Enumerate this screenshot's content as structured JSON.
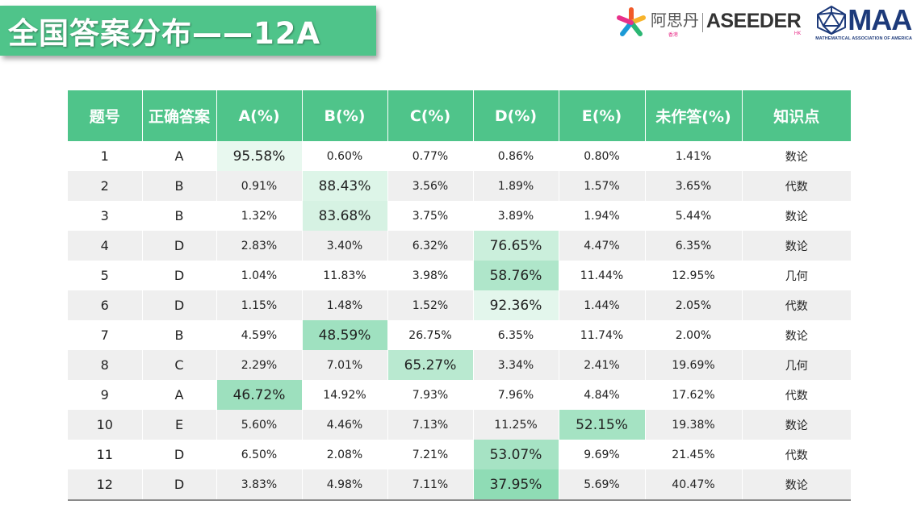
{
  "title": "全国答案分布——12A",
  "logos": {
    "aseeder_cn": "阿思丹",
    "aseeder_sub": "香港",
    "aseeder_en": "ASEEDER",
    "aseeder_hk": "HK",
    "maa": "MAA",
    "maa_sub": "MATHEMATICAL ASSOCIATION OF AMERICA"
  },
  "colors": {
    "accent": "#4fc48a",
    "hl_low": "#e8f8ef",
    "hl_high": "#8fdcb5"
  },
  "headers": [
    "题号",
    "正确答案",
    "A(%)",
    "B(%)",
    "C(%)",
    "D(%)",
    "E(%)",
    "未作答(%)",
    "知识点"
  ],
  "rows": [
    {
      "num": "1",
      "answer": "A",
      "pcts": [
        "95.58%",
        "0.60%",
        "0.77%",
        "0.86%",
        "0.80%"
      ],
      "blank": "1.41%",
      "topic": "数论",
      "hl": 0
    },
    {
      "num": "2",
      "answer": "B",
      "pcts": [
        "0.91%",
        "88.43%",
        "3.56%",
        "1.89%",
        "1.57%"
      ],
      "blank": "3.65%",
      "topic": "代数",
      "hl": 1
    },
    {
      "num": "3",
      "answer": "B",
      "pcts": [
        "1.32%",
        "83.68%",
        "3.75%",
        "3.89%",
        "1.94%"
      ],
      "blank": "5.44%",
      "topic": "数论",
      "hl": 1
    },
    {
      "num": "4",
      "answer": "D",
      "pcts": [
        "2.83%",
        "3.40%",
        "6.32%",
        "76.65%",
        "4.47%"
      ],
      "blank": "6.35%",
      "topic": "数论",
      "hl": 3
    },
    {
      "num": "5",
      "answer": "D",
      "pcts": [
        "1.04%",
        "11.83%",
        "3.98%",
        "58.76%",
        "11.44%"
      ],
      "blank": "12.95%",
      "topic": "几何",
      "hl": 3
    },
    {
      "num": "6",
      "answer": "D",
      "pcts": [
        "1.15%",
        "1.48%",
        "1.52%",
        "92.36%",
        "1.44%"
      ],
      "blank": "2.05%",
      "topic": "代数",
      "hl": 3
    },
    {
      "num": "7",
      "answer": "B",
      "pcts": [
        "4.59%",
        "48.59%",
        "26.75%",
        "6.35%",
        "11.74%"
      ],
      "blank": "2.00%",
      "topic": "数论",
      "hl": 1
    },
    {
      "num": "8",
      "answer": "C",
      "pcts": [
        "2.29%",
        "7.01%",
        "65.27%",
        "3.34%",
        "2.41%"
      ],
      "blank": "19.69%",
      "topic": "几何",
      "hl": 2
    },
    {
      "num": "9",
      "answer": "A",
      "pcts": [
        "46.72%",
        "14.92%",
        "7.93%",
        "7.96%",
        "4.84%"
      ],
      "blank": "17.62%",
      "topic": "代数",
      "hl": 0
    },
    {
      "num": "10",
      "answer": "E",
      "pcts": [
        "5.60%",
        "4.46%",
        "7.13%",
        "11.25%",
        "52.15%"
      ],
      "blank": "19.38%",
      "topic": "数论",
      "hl": 4
    },
    {
      "num": "11",
      "answer": "D",
      "pcts": [
        "6.50%",
        "2.08%",
        "7.21%",
        "53.07%",
        "9.69%"
      ],
      "blank": "21.45%",
      "topic": "代数",
      "hl": 3
    },
    {
      "num": "12",
      "answer": "D",
      "pcts": [
        "3.83%",
        "4.98%",
        "7.11%",
        "37.95%",
        "5.69%"
      ],
      "blank": "40.47%",
      "topic": "数论",
      "hl": 3
    }
  ]
}
